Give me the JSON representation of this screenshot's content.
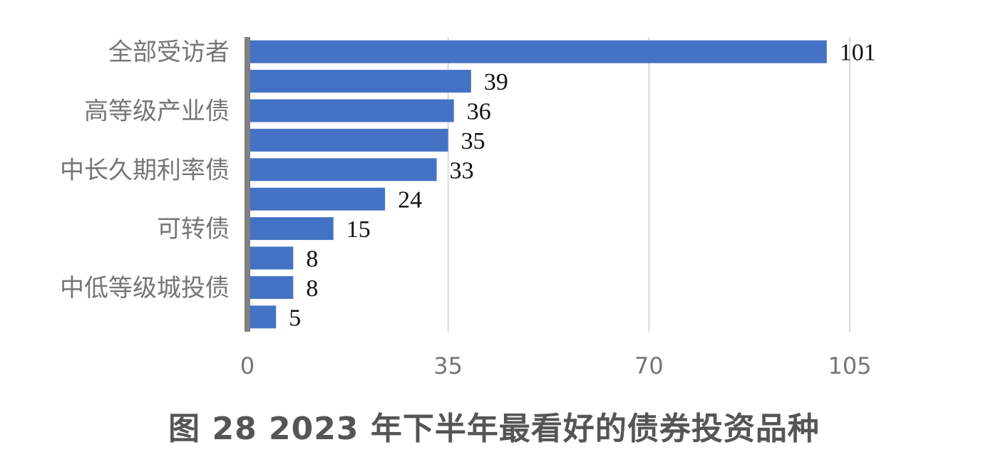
{
  "chart_data": {
    "type": "bar",
    "orientation": "horizontal",
    "title": "图 28 2023 年下半年最看好的债券投资品种",
    "categories": [
      "全部受访者",
      "",
      "高等级产业债",
      "",
      "中长久期利率债",
      "",
      "可转债",
      "",
      "中低等级城投债",
      ""
    ],
    "values": [
      101,
      39,
      36,
      35,
      33,
      24,
      15,
      8,
      8,
      5
    ],
    "xlim": [
      0,
      105
    ],
    "xticks": [
      0,
      35,
      70,
      105
    ],
    "grid": true,
    "legend": "none",
    "colors": {
      "bar": "#4472C4",
      "axis": "#808080",
      "grid": "#D9D9D9"
    }
  }
}
